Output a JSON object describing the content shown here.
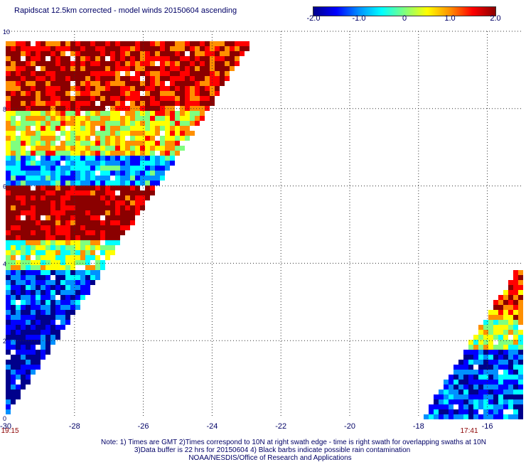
{
  "chart_data": {
    "type": "heatmap",
    "title": "Rapidscat 12.5km corrected - model winds 20150604 ascending",
    "colorbar": {
      "range": [
        -2.0,
        2.0
      ],
      "ticks": [
        "-2.0",
        "-1.0",
        "0",
        "1.0",
        "2.0"
      ],
      "colors": [
        "#00008b",
        "#0000ff",
        "#0090ff",
        "#00ffff",
        "#7fff7f",
        "#ffff00",
        "#ff9000",
        "#ff0000",
        "#8b0000"
      ]
    },
    "xlim": [
      -30,
      -15
    ],
    "ylim": [
      0,
      10
    ],
    "x_ticks": [
      "-30",
      "-28",
      "-26",
      "-24",
      "-22",
      "-20",
      "-18",
      "-16"
    ],
    "y_ticks": [
      "0",
      "2",
      "4",
      "6",
      "8",
      "10"
    ],
    "grid": "dotted",
    "time_labels": [
      "19:15",
      "17:41"
    ],
    "swaths": [
      {
        "description_hidden": true,
        "time": "19:15",
        "regions": [
          {
            "lat": [
              8.0,
              10.0
            ],
            "value": 1.7
          },
          {
            "lat": [
              6.8,
              8.0
            ],
            "value": 0.6
          },
          {
            "lat": [
              6.0,
              6.8
            ],
            "value": -0.9
          },
          {
            "lat": [
              4.6,
              6.0
            ],
            "value": 2.0
          },
          {
            "lat": [
              3.8,
              4.6
            ],
            "value": 0.2
          },
          {
            "lat": [
              2.8,
              3.8
            ],
            "value": -1.4
          },
          {
            "lat": [
              0.0,
              2.8
            ],
            "value": -1.8
          }
        ]
      },
      {
        "description_hidden": true,
        "time": "17:41",
        "regions": [
          {
            "lat": [
              2.6,
              3.9
            ],
            "value": 1.3
          },
          {
            "lat": [
              1.8,
              2.6
            ],
            "value": 0.3
          },
          {
            "lat": [
              0.0,
              1.8
            ],
            "value": -1.3
          }
        ]
      }
    ]
  },
  "footer": {
    "line1": "Note: 1) Times are GMT 2)Times correspond to 10N at right swath edge - time is right swath for overlapping swaths at 10N",
    "line2": "3)Data buffer is 22 hrs for 20150604 4) Black barbs indicate possible rain contamination",
    "line3": "NOAA/NESDIS/Office of Research and Applications"
  },
  "colors": {
    "axis_text": "#000066",
    "time_text": "#8b0000"
  }
}
